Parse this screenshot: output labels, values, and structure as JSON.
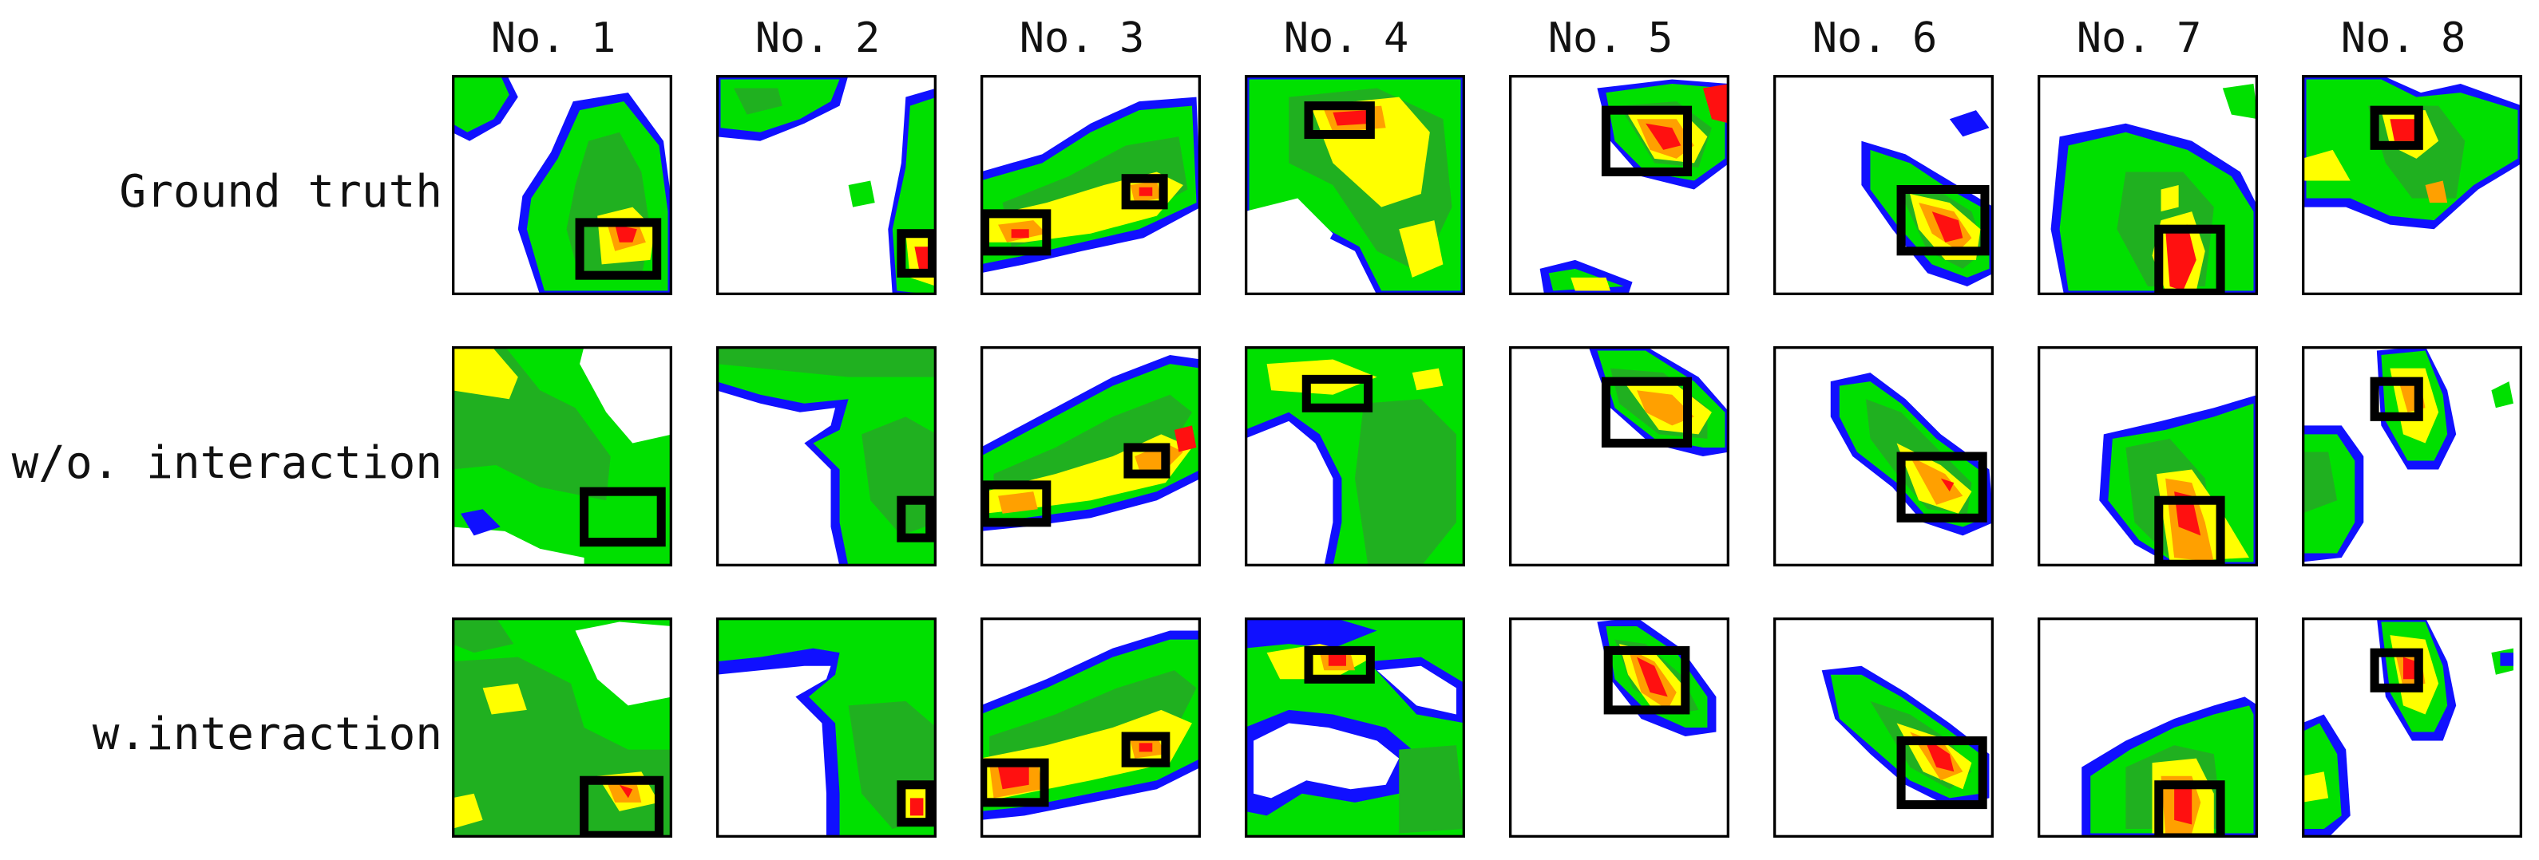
{
  "columns": [
    "No. 1",
    "No. 2",
    "No. 3",
    "No. 4",
    "No. 5",
    "No. 6",
    "No. 7",
    "No. 8"
  ],
  "rows": [
    {
      "label": "Ground truth"
    },
    {
      "label": "w/o. interaction"
    },
    {
      "label": "w.interaction"
    }
  ],
  "colors": {
    "blue": "#1010ff",
    "light_green": "#00e000",
    "green": "#20b020",
    "dark_green": "#0a8a0a",
    "yellow": "#ffff00",
    "orange": "#ffa000",
    "red": "#ff1010",
    "box": "#000000"
  }
}
